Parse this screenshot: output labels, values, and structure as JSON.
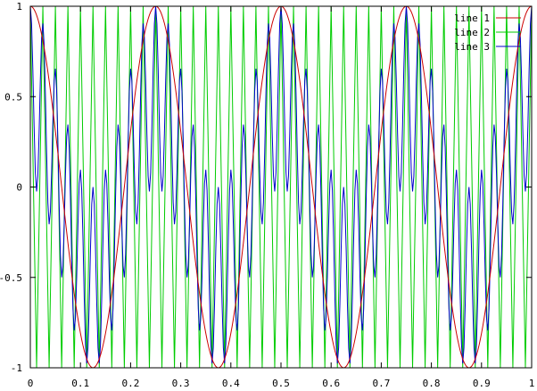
{
  "chart_data": {
    "type": "line",
    "title": "",
    "xlabel": "",
    "ylabel": "",
    "xlim": [
      0,
      1
    ],
    "ylim": [
      -1,
      1
    ],
    "x_ticks": [
      "0",
      "0.1",
      "0.2",
      "0.3",
      "0.4",
      "0.5",
      "0.6",
      "0.7",
      "0.8",
      "0.9",
      "1"
    ],
    "x_tick_values": [
      0,
      0.1,
      0.2,
      0.3,
      0.4,
      0.5,
      0.6,
      0.7,
      0.8,
      0.9,
      1
    ],
    "y_ticks": [
      "1",
      "0.5",
      "0",
      "-0.5",
      "-1"
    ],
    "y_tick_values": [
      1,
      0.5,
      0,
      -0.5,
      -1
    ],
    "grid": false,
    "legend_position": "top-right",
    "series": [
      {
        "name": "line 1",
        "color": "#cc0000",
        "function": "cos(2*pi*4*x)",
        "frequency_cycles": 4,
        "samples": 401
      },
      {
        "name": "line 2",
        "color": "#00cc00",
        "function": "cos(2*pi*40*x)",
        "frequency_cycles": 40,
        "samples": 161
      },
      {
        "name": "line 3",
        "color": "#0000cc",
        "function": "(cos(2*pi*4*x) + cos(2*pi*40*x)) / 2",
        "frequency_cycles": [
          4,
          40
        ],
        "samples": 401
      }
    ]
  }
}
